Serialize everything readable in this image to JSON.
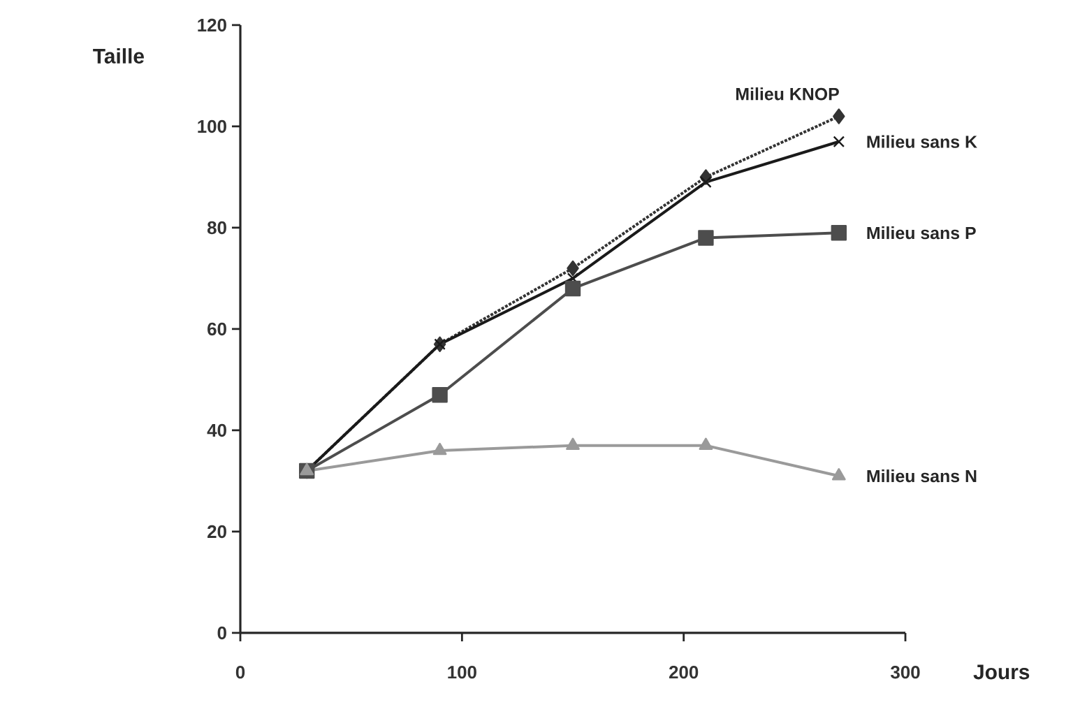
{
  "chart_data": {
    "type": "line",
    "xlabel": "Jours",
    "ylabel": "Taille",
    "xlim": [
      0,
      300
    ],
    "xticks": [
      0,
      100,
      200,
      300
    ],
    "ylim": [
      0,
      120
    ],
    "yticks": [
      0,
      20,
      40,
      60,
      80,
      100,
      120
    ],
    "grid": false,
    "series": [
      {
        "name": "Milieu KNOP",
        "color": "#333333",
        "marker": "diamond",
        "line_style": "dotted",
        "x": [
          30,
          90,
          150,
          210,
          270
        ],
        "values": [
          32,
          57,
          72,
          90,
          102
        ]
      },
      {
        "name": "Milieu sans K",
        "color": "#1a1a1a",
        "marker": "cross",
        "line_style": "solid",
        "x": [
          30,
          90,
          150,
          210,
          270
        ],
        "values": [
          32,
          57,
          70,
          89,
          97
        ]
      },
      {
        "name": "Milieu sans P",
        "color": "#4d4d4d",
        "marker": "square",
        "line_style": "solid",
        "x": [
          30,
          90,
          150,
          210,
          270
        ],
        "values": [
          32,
          47,
          68,
          78,
          79
        ]
      },
      {
        "name": "Milieu sans N",
        "color": "#9a9a9a",
        "marker": "triangle",
        "line_style": "solid",
        "x": [
          30,
          90,
          150,
          210,
          270
        ],
        "values": [
          32,
          36,
          37,
          37,
          31
        ]
      }
    ]
  }
}
